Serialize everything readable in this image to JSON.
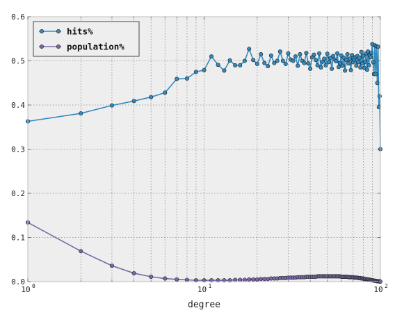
{
  "chart_data": {
    "type": "line",
    "xlabel": "degree",
    "ylabel": "",
    "xscale": "log",
    "xlim": [
      1,
      100
    ],
    "ylim": [
      0.0,
      0.6
    ],
    "grid": true,
    "legend_position": "top-left",
    "y_ticks": [
      "0.0",
      "0.1",
      "0.2",
      "0.3",
      "0.4",
      "0.5",
      "0.6"
    ],
    "x_ticks": [
      {
        "base": "10",
        "exp": "0"
      },
      {
        "base": "10",
        "exp": "1"
      },
      {
        "base": "10",
        "exp": "2"
      }
    ],
    "series": [
      {
        "name": "hits%",
        "color": "#348ABD",
        "x": [
          1,
          2,
          3,
          4,
          5,
          6,
          7,
          8,
          9,
          10,
          11,
          12,
          13,
          14,
          15,
          16,
          17,
          18,
          19,
          20,
          21,
          22,
          23,
          24,
          25,
          26,
          27,
          28,
          29,
          30,
          31,
          32,
          33,
          34,
          35,
          36,
          37,
          38,
          39,
          40,
          41,
          42,
          43,
          44,
          45,
          46,
          47,
          48,
          49,
          50,
          51,
          52,
          53,
          54,
          55,
          56,
          57,
          58,
          59,
          60,
          61,
          62,
          63,
          64,
          65,
          66,
          67,
          68,
          69,
          70,
          71,
          72,
          73,
          74,
          75,
          76,
          77,
          78,
          79,
          80,
          81,
          82,
          83,
          84,
          85,
          86,
          87,
          88,
          89,
          90,
          91,
          92,
          93,
          94,
          95,
          96,
          97,
          98,
          99,
          100
        ],
        "y": [
          0.363,
          0.381,
          0.399,
          0.409,
          0.418,
          0.428,
          0.459,
          0.46,
          0.475,
          0.479,
          0.51,
          0.491,
          0.478,
          0.501,
          0.49,
          0.49,
          0.5,
          0.527,
          0.502,
          0.493,
          0.515,
          0.495,
          0.488,
          0.512,
          0.495,
          0.5,
          0.521,
          0.5,
          0.493,
          0.517,
          0.503,
          0.5,
          0.51,
          0.489,
          0.515,
          0.5,
          0.495,
          0.518,
          0.494,
          0.482,
          0.508,
          0.514,
          0.502,
          0.49,
          0.517,
          0.485,
          0.498,
          0.505,
          0.49,
          0.516,
          0.497,
          0.507,
          0.482,
          0.511,
          0.503,
          0.499,
          0.517,
          0.486,
          0.495,
          0.512,
          0.489,
          0.507,
          0.478,
          0.502,
          0.515,
          0.494,
          0.505,
          0.479,
          0.513,
          0.497,
          0.503,
          0.508,
          0.489,
          0.511,
          0.497,
          0.507,
          0.485,
          0.52,
          0.494,
          0.511,
          0.484,
          0.498,
          0.517,
          0.48,
          0.521,
          0.49,
          0.513,
          0.508,
          0.518,
          0.538,
          0.497,
          0.47,
          0.535,
          0.47,
          0.533,
          0.45,
          0.532,
          0.395,
          0.42,
          0.3
        ]
      },
      {
        "name": "population%",
        "color": "#7A68A6",
        "x": [
          1,
          2,
          3,
          4,
          5,
          6,
          7,
          8,
          9,
          10,
          11,
          12,
          13,
          14,
          15,
          16,
          17,
          18,
          19,
          20,
          21,
          22,
          23,
          24,
          25,
          26,
          27,
          28,
          29,
          30,
          31,
          32,
          33,
          34,
          35,
          36,
          37,
          38,
          39,
          40,
          41,
          42,
          43,
          44,
          45,
          46,
          47,
          48,
          49,
          50,
          51,
          52,
          53,
          54,
          55,
          56,
          57,
          58,
          59,
          60,
          61,
          62,
          63,
          64,
          65,
          66,
          67,
          68,
          69,
          70,
          71,
          72,
          73,
          74,
          75,
          76,
          77,
          78,
          79,
          80,
          81,
          82,
          83,
          84,
          85,
          86,
          87,
          88,
          89,
          90,
          91,
          92,
          93,
          94,
          95,
          96,
          97,
          98,
          99,
          100
        ],
        "y": [
          0.134,
          0.069,
          0.036,
          0.019,
          0.011,
          0.007,
          0.005,
          0.004,
          0.003,
          0.003,
          0.003,
          0.003,
          0.003,
          0.003,
          0.004,
          0.004,
          0.004,
          0.005,
          0.005,
          0.005,
          0.006,
          0.006,
          0.006,
          0.007,
          0.007,
          0.007,
          0.008,
          0.008,
          0.008,
          0.009,
          0.009,
          0.009,
          0.009,
          0.01,
          0.01,
          0.01,
          0.01,
          0.011,
          0.011,
          0.011,
          0.011,
          0.011,
          0.011,
          0.012,
          0.012,
          0.012,
          0.012,
          0.012,
          0.012,
          0.012,
          0.012,
          0.012,
          0.012,
          0.012,
          0.012,
          0.012,
          0.012,
          0.012,
          0.012,
          0.011,
          0.011,
          0.011,
          0.011,
          0.011,
          0.011,
          0.01,
          0.01,
          0.01,
          0.01,
          0.01,
          0.009,
          0.009,
          0.009,
          0.009,
          0.008,
          0.008,
          0.008,
          0.007,
          0.007,
          0.007,
          0.006,
          0.006,
          0.006,
          0.005,
          0.005,
          0.005,
          0.004,
          0.004,
          0.003,
          0.003,
          0.003,
          0.002,
          0.002,
          0.002,
          0.001,
          0.001,
          0.001,
          0.001,
          0.0,
          0.0
        ]
      }
    ]
  }
}
